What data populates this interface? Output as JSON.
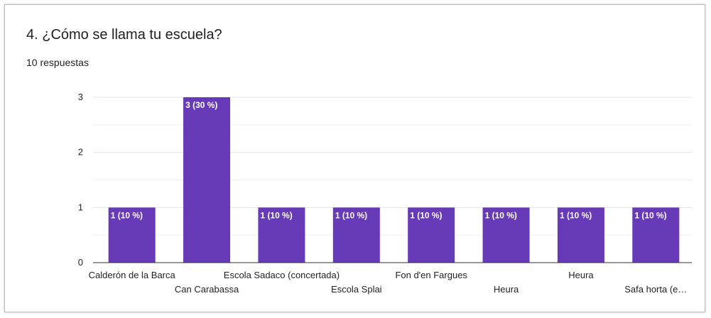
{
  "question": {
    "title": "4. ¿Cómo se llama tu escuela?",
    "responses": "10 respuestas"
  },
  "colors": {
    "bar": "#673ab7",
    "gridline": "#e6e6e6",
    "axis": "#333333",
    "text": "#222222",
    "bar_label": "#ffffff"
  },
  "chart_data": {
    "type": "bar",
    "title": "4. ¿Cómo se llama tu escuela?",
    "categories": [
      "Calderón de la Barca",
      "Can Carabassa",
      "Escola Sadaco (concertada)",
      "Escola Splai",
      "Fon d'en Fargues",
      "Heura",
      "Heura",
      "Safa horta (e…"
    ],
    "values": [
      1,
      3,
      1,
      1,
      1,
      1,
      1,
      1
    ],
    "data_labels": [
      "1 (10 %)",
      "3 (30 %)",
      "1 (10 %)",
      "1 (10 %)",
      "1 (10 %)",
      "1 (10 %)",
      "1 (10 %)",
      "1 (10 %)"
    ],
    "yticks": [
      0,
      1,
      2,
      3
    ],
    "ylim": [
      0,
      3
    ],
    "xlabel": "",
    "ylabel": "",
    "grid": true,
    "legend": "none"
  }
}
